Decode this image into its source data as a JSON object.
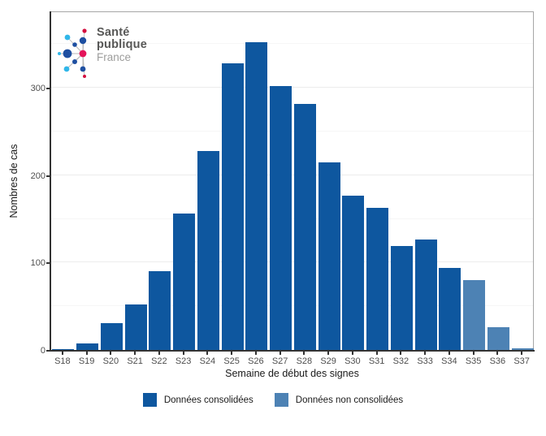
{
  "colors": {
    "consolidated": "#0e579f",
    "non_consolidated": "#4d82b4",
    "axis_line": "#333333",
    "panel_border": "#a6a6a6",
    "grid_major": "#ececec",
    "grid_minor": "#f6f6f6",
    "tick_text": "#4d4d4d",
    "title_text": "#1a1a1a",
    "logo_navy": "#1e4fa1",
    "logo_cyan": "#31b7e9",
    "logo_magenta": "#e4145a",
    "logo_red": "#d40f3f",
    "logo_text_dark": "#575756",
    "logo_text_light": "#9d9d9c",
    "logo_line": "#b8b8b8"
  },
  "logo": {
    "line1": "Santé",
    "line2": "publique",
    "line3": "France"
  },
  "chart_data": {
    "type": "bar",
    "title": "",
    "xlabel": "Semaine de début des signes",
    "ylabel": "Nombres de cas",
    "categories": [
      "S18",
      "S19",
      "S20",
      "S21",
      "S22",
      "S23",
      "S24",
      "S25",
      "S26",
      "S27",
      "S28",
      "S29",
      "S30",
      "S31",
      "S32",
      "S33",
      "S34",
      "S35",
      "S36",
      "S37"
    ],
    "series": [
      {
        "name": "Données consolidées",
        "color_key": "consolidated",
        "values": [
          1,
          7,
          31,
          52,
          90,
          156,
          228,
          328,
          352,
          302,
          282,
          215,
          177,
          163,
          119,
          126,
          94,
          0,
          0,
          0
        ]
      },
      {
        "name": "Données non consolidées",
        "color_key": "non_consolidated",
        "values": [
          0,
          0,
          0,
          0,
          0,
          0,
          0,
          0,
          0,
          0,
          0,
          0,
          0,
          0,
          0,
          0,
          0,
          80,
          26,
          2
        ]
      }
    ],
    "ylim": [
      0,
      388
    ],
    "yticks": [
      0,
      100,
      200,
      300
    ],
    "grid": true,
    "legend_position": "bottom"
  }
}
